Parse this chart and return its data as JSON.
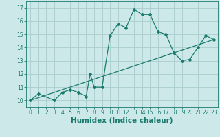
{
  "xlabel": "Humidex (Indice chaleur)",
  "background_color": "#cce8e8",
  "line_color": "#1a7a6e",
  "grid_color": "#aacccc",
  "xlim": [
    -0.5,
    23.5
  ],
  "ylim": [
    9.5,
    17.5
  ],
  "xticks": [
    0,
    1,
    2,
    3,
    4,
    5,
    6,
    7,
    8,
    9,
    10,
    11,
    12,
    13,
    14,
    15,
    16,
    17,
    18,
    19,
    20,
    21,
    22,
    23
  ],
  "yticks": [
    10,
    11,
    12,
    13,
    14,
    15,
    16,
    17
  ],
  "curve1_x": [
    0,
    1,
    3,
    4,
    5,
    6,
    7,
    7.5,
    8,
    9,
    10,
    11,
    12,
    13,
    14,
    15,
    16,
    17,
    18,
    19,
    20,
    21,
    22,
    23
  ],
  "curve1_y": [
    10.0,
    10.5,
    10.0,
    10.6,
    10.8,
    10.6,
    10.3,
    12.0,
    11.0,
    11.0,
    14.9,
    15.8,
    15.5,
    16.9,
    16.5,
    16.5,
    15.2,
    15.0,
    13.6,
    13.0,
    13.1,
    14.0,
    14.9,
    14.6
  ],
  "curve2_x": [
    0,
    23
  ],
  "curve2_y": [
    10.0,
    14.6
  ],
  "tick_fontsize": 5.5,
  "xlabel_fontsize": 7.5
}
